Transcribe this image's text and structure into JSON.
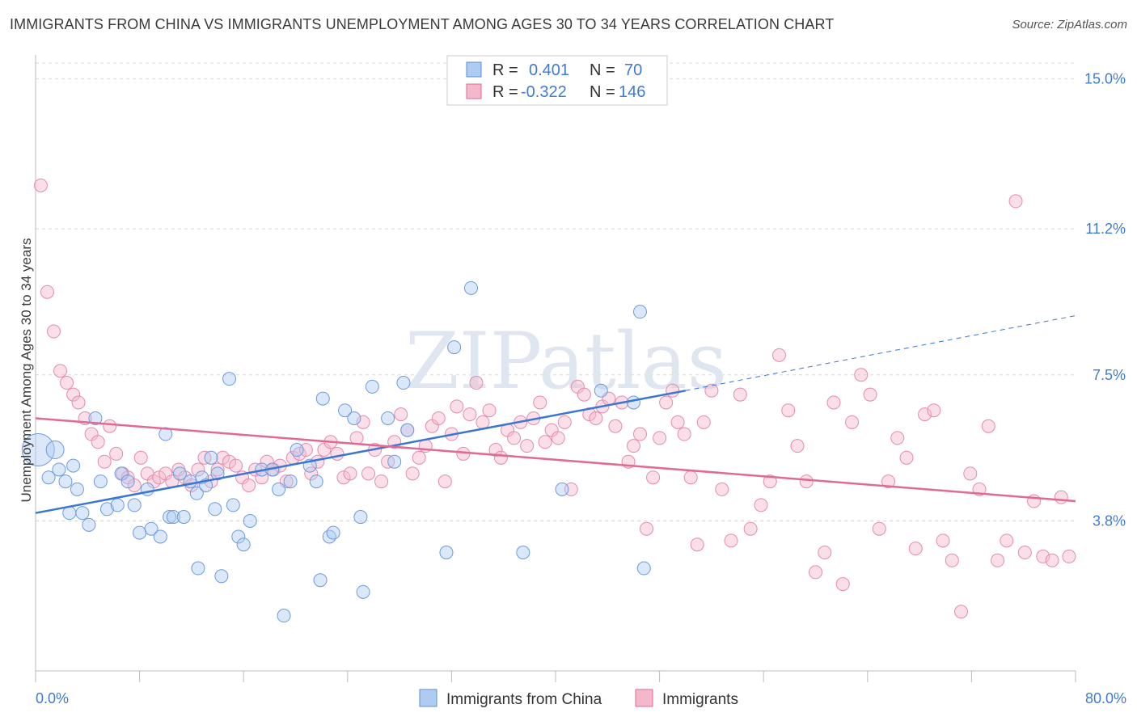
{
  "title": "IMMIGRANTS FROM CHINA VS IMMIGRANTS UNEMPLOYMENT AMONG AGES 30 TO 34 YEARS CORRELATION CHART",
  "source": "Source: ZipAtlas.com",
  "watermark": "ZIPatlas",
  "colors": {
    "blue": "#5b8fd8",
    "blue_fill": "#aecbf2",
    "pink": "#e06a93",
    "pink_fill": "#f4b8cc",
    "axis_text": "#3f7ad6",
    "grid": "#d8d8d8"
  },
  "legend_stats": [
    {
      "r_label": "R =",
      "r_value": "0.401",
      "n_label": "N =",
      "n_value": "70"
    },
    {
      "r_label": "R =",
      "r_value": "-0.322",
      "n_label": "N =",
      "n_value": "146"
    }
  ],
  "chart_data": {
    "type": "scatter",
    "title": "IMMIGRANTS FROM CHINA VS IMMIGRANTS UNEMPLOYMENT AMONG AGES 30 TO 34 YEARS CORRELATION CHART",
    "xlabel": "",
    "ylabel": "Unemployment Among Ages 30 to 34 years",
    "xlim": [
      0,
      80
    ],
    "ylim": [
      0,
      15.4
    ],
    "x_tick_labels": [
      "0.0%",
      "80.0%"
    ],
    "y_ticks": [
      3.8,
      7.5,
      11.2,
      15.0
    ],
    "y_tick_labels": [
      "3.8%",
      "7.5%",
      "11.2%",
      "15.0%"
    ],
    "grid": true,
    "legend_position": "bottom",
    "series": [
      {
        "name": "Immigrants from China",
        "color": "#5b8fd8",
        "trend": {
          "x": [
            0,
            50
          ],
          "y": [
            4.0,
            7.1
          ],
          "dashed_to": [
            80,
            9.0
          ]
        },
        "points": [
          [
            0.2,
            5.6
          ],
          [
            1.0,
            4.9
          ],
          [
            1.5,
            5.6
          ],
          [
            1.8,
            5.1
          ],
          [
            2.3,
            4.8
          ],
          [
            2.6,
            4.0
          ],
          [
            2.9,
            5.2
          ],
          [
            3.2,
            4.6
          ],
          [
            3.6,
            4.0
          ],
          [
            4.1,
            3.7
          ],
          [
            4.6,
            6.4
          ],
          [
            5.0,
            4.8
          ],
          [
            5.5,
            4.1
          ],
          [
            6.3,
            4.2
          ],
          [
            6.6,
            5.0
          ],
          [
            7.1,
            4.8
          ],
          [
            7.6,
            4.2
          ],
          [
            8.0,
            3.5
          ],
          [
            8.6,
            4.6
          ],
          [
            8.9,
            3.6
          ],
          [
            9.6,
            3.4
          ],
          [
            10.0,
            6.0
          ],
          [
            10.3,
            3.9
          ],
          [
            10.6,
            3.9
          ],
          [
            11.1,
            5.0
          ],
          [
            11.4,
            3.9
          ],
          [
            11.9,
            4.8
          ],
          [
            12.4,
            4.5
          ],
          [
            12.8,
            4.9
          ],
          [
            13.1,
            4.7
          ],
          [
            13.5,
            5.4
          ],
          [
            14.0,
            5.0
          ],
          [
            14.3,
            2.4
          ],
          [
            14.9,
            7.4
          ],
          [
            15.2,
            4.2
          ],
          [
            15.6,
            3.4
          ],
          [
            16.0,
            3.2
          ],
          [
            16.5,
            3.8
          ],
          [
            17.4,
            5.1
          ],
          [
            18.2,
            5.1
          ],
          [
            18.7,
            4.6
          ],
          [
            19.1,
            1.4
          ],
          [
            19.6,
            4.8
          ],
          [
            20.1,
            5.6
          ],
          [
            21.1,
            5.2
          ],
          [
            21.6,
            4.8
          ],
          [
            21.9,
            2.3
          ],
          [
            22.1,
            6.9
          ],
          [
            22.6,
            3.4
          ],
          [
            22.9,
            3.5
          ],
          [
            23.8,
            6.6
          ],
          [
            24.5,
            6.4
          ],
          [
            25.0,
            3.9
          ],
          [
            25.2,
            2.0
          ],
          [
            25.9,
            7.2
          ],
          [
            27.1,
            6.4
          ],
          [
            27.6,
            5.3
          ],
          [
            28.3,
            7.3
          ],
          [
            28.6,
            6.1
          ],
          [
            31.6,
            3.0
          ],
          [
            32.2,
            8.2
          ],
          [
            33.5,
            9.7
          ],
          [
            37.5,
            3.0
          ],
          [
            46.0,
            6.8
          ],
          [
            46.5,
            9.1
          ],
          [
            46.8,
            2.6
          ],
          [
            43.5,
            7.1
          ],
          [
            40.5,
            4.6
          ],
          [
            12.5,
            2.6
          ],
          [
            13.8,
            4.1
          ]
        ]
      },
      {
        "name": "Immigrants",
        "color": "#e06a93",
        "trend": {
          "x": [
            0,
            80
          ],
          "y": [
            6.4,
            4.3
          ]
        },
        "points": [
          [
            0.4,
            12.3
          ],
          [
            0.9,
            9.6
          ],
          [
            1.4,
            8.6
          ],
          [
            1.9,
            7.6
          ],
          [
            2.4,
            7.3
          ],
          [
            2.9,
            7.0
          ],
          [
            3.3,
            6.8
          ],
          [
            3.8,
            6.4
          ],
          [
            4.3,
            6.0
          ],
          [
            4.8,
            5.8
          ],
          [
            5.3,
            5.3
          ],
          [
            5.7,
            6.2
          ],
          [
            6.2,
            5.5
          ],
          [
            6.7,
            5.0
          ],
          [
            7.1,
            4.9
          ],
          [
            7.6,
            4.7
          ],
          [
            8.1,
            5.4
          ],
          [
            8.6,
            5.0
          ],
          [
            9.1,
            4.8
          ],
          [
            9.5,
            4.9
          ],
          [
            10.0,
            5.0
          ],
          [
            10.5,
            4.8
          ],
          [
            11.0,
            5.1
          ],
          [
            11.5,
            4.9
          ],
          [
            12.0,
            4.7
          ],
          [
            12.5,
            5.1
          ],
          [
            13.0,
            5.4
          ],
          [
            13.5,
            4.8
          ],
          [
            14.0,
            5.1
          ],
          [
            14.4,
            5.4
          ],
          [
            14.9,
            5.3
          ],
          [
            15.4,
            5.2
          ],
          [
            15.9,
            4.9
          ],
          [
            16.4,
            4.7
          ],
          [
            16.9,
            5.1
          ],
          [
            17.4,
            4.9
          ],
          [
            17.8,
            5.3
          ],
          [
            18.3,
            5.1
          ],
          [
            18.8,
            5.2
          ],
          [
            19.3,
            4.8
          ],
          [
            19.8,
            5.4
          ],
          [
            20.3,
            5.5
          ],
          [
            20.8,
            5.6
          ],
          [
            21.2,
            5.0
          ],
          [
            21.7,
            5.3
          ],
          [
            22.2,
            5.6
          ],
          [
            22.7,
            5.8
          ],
          [
            23.2,
            5.5
          ],
          [
            23.7,
            4.9
          ],
          [
            24.2,
            5.0
          ],
          [
            24.7,
            5.9
          ],
          [
            25.2,
            6.3
          ],
          [
            25.6,
            5.0
          ],
          [
            26.1,
            5.6
          ],
          [
            26.6,
            4.8
          ],
          [
            27.1,
            5.3
          ],
          [
            27.6,
            5.8
          ],
          [
            28.1,
            6.5
          ],
          [
            28.6,
            6.1
          ],
          [
            29.0,
            5.0
          ],
          [
            29.5,
            5.4
          ],
          [
            30.0,
            5.7
          ],
          [
            30.5,
            6.2
          ],
          [
            31.0,
            6.4
          ],
          [
            31.5,
            4.8
          ],
          [
            32.0,
            6.0
          ],
          [
            32.4,
            6.7
          ],
          [
            32.9,
            5.5
          ],
          [
            33.4,
            6.5
          ],
          [
            33.9,
            7.3
          ],
          [
            34.4,
            6.3
          ],
          [
            34.9,
            6.6
          ],
          [
            35.4,
            5.6
          ],
          [
            35.8,
            5.4
          ],
          [
            36.3,
            6.1
          ],
          [
            36.8,
            5.9
          ],
          [
            37.3,
            6.3
          ],
          [
            37.8,
            5.7
          ],
          [
            38.3,
            6.4
          ],
          [
            38.8,
            6.8
          ],
          [
            39.2,
            5.8
          ],
          [
            39.7,
            6.1
          ],
          [
            40.2,
            5.9
          ],
          [
            40.7,
            6.3
          ],
          [
            41.2,
            4.6
          ],
          [
            41.7,
            7.2
          ],
          [
            42.2,
            7.0
          ],
          [
            42.6,
            6.5
          ],
          [
            43.1,
            6.4
          ],
          [
            43.6,
            6.7
          ],
          [
            44.1,
            6.9
          ],
          [
            44.6,
            6.2
          ],
          [
            45.1,
            6.8
          ],
          [
            45.6,
            5.3
          ],
          [
            46.0,
            5.7
          ],
          [
            46.5,
            6.0
          ],
          [
            47.0,
            3.6
          ],
          [
            47.5,
            4.9
          ],
          [
            48.0,
            5.9
          ],
          [
            48.5,
            6.8
          ],
          [
            49.0,
            7.1
          ],
          [
            49.4,
            6.3
          ],
          [
            49.9,
            6.0
          ],
          [
            50.4,
            4.9
          ],
          [
            50.9,
            3.2
          ],
          [
            51.4,
            6.3
          ],
          [
            52.0,
            7.1
          ],
          [
            52.8,
            4.6
          ],
          [
            53.5,
            3.3
          ],
          [
            54.2,
            7.0
          ],
          [
            55.0,
            3.6
          ],
          [
            55.8,
            4.2
          ],
          [
            56.5,
            4.8
          ],
          [
            57.2,
            8.0
          ],
          [
            57.9,
            6.6
          ],
          [
            58.6,
            5.7
          ],
          [
            59.3,
            4.8
          ],
          [
            60.0,
            2.5
          ],
          [
            60.7,
            3.0
          ],
          [
            61.4,
            6.8
          ],
          [
            62.1,
            2.2
          ],
          [
            62.8,
            6.3
          ],
          [
            63.5,
            7.5
          ],
          [
            64.2,
            7.0
          ],
          [
            64.9,
            3.6
          ],
          [
            65.6,
            4.8
          ],
          [
            66.3,
            5.9
          ],
          [
            67.0,
            5.4
          ],
          [
            67.7,
            3.1
          ],
          [
            68.4,
            6.5
          ],
          [
            69.1,
            6.6
          ],
          [
            69.8,
            3.3
          ],
          [
            70.5,
            2.8
          ],
          [
            71.2,
            1.5
          ],
          [
            71.9,
            5.0
          ],
          [
            72.6,
            4.6
          ],
          [
            73.3,
            6.2
          ],
          [
            74.0,
            2.8
          ],
          [
            74.7,
            3.3
          ],
          [
            75.4,
            11.9
          ],
          [
            76.1,
            3.0
          ],
          [
            76.8,
            4.3
          ],
          [
            77.5,
            2.9
          ],
          [
            78.2,
            2.8
          ],
          [
            78.9,
            4.4
          ],
          [
            79.5,
            2.9
          ]
        ]
      }
    ]
  },
  "bottom_legend": [
    "Immigrants from China",
    "Immigrants"
  ]
}
